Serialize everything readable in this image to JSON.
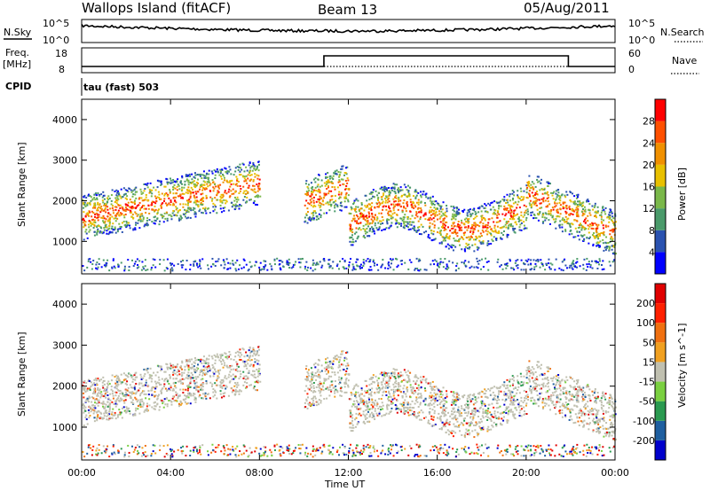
{
  "header": {
    "title": "Wallops Island (fitACF)",
    "beam": "Beam 13",
    "date": "05/Aug/2011"
  },
  "status_panels": {
    "nsky_label": "N.Sky",
    "nsearch_label": "N.Search",
    "freq_label_1": "Freq.",
    "freq_label_2": "[MHz]",
    "nave_label": "Nave",
    "cpid_label": "CPID",
    "noise_ticks": {
      "top": "10^5",
      "bottom": "10^0"
    },
    "freq_ticks": {
      "top": "18",
      "bottom": "8"
    },
    "nave_ticks": {
      "top": "60",
      "bottom": "0"
    },
    "cpid_text": "tau (fast) 503",
    "freq_step": {
      "start_hour": 10.9,
      "end_hour": 21.9
    }
  },
  "chart_data": [
    {
      "type": "heatmap",
      "title": "",
      "ylabel": "Slant Range [km]",
      "ylim": [
        200,
        4500
      ],
      "yticks": [
        "1000",
        "2000",
        "3000",
        "4000"
      ],
      "xlim": [
        0,
        24
      ],
      "xticks": [
        "00:00",
        "04:00",
        "08:00",
        "12:00",
        "16:00",
        "20:00",
        "00:00"
      ],
      "colorbar": {
        "label": "Power [dB]",
        "ticks": [
          "28",
          "24",
          "20",
          "16",
          "12",
          "8",
          "4"
        ],
        "colors": [
          "#0000ff",
          "#2a52b0",
          "#4a9a6a",
          "#7ab84a",
          "#e8c000",
          "#f09000",
          "#ff5000",
          "#ff0000"
        ]
      }
    },
    {
      "type": "heatmap",
      "title": "",
      "ylabel": "Slant Range [km]",
      "ylim": [
        200,
        4500
      ],
      "yticks": [
        "1000",
        "2000",
        "3000",
        "4000"
      ],
      "xlim": [
        0,
        24
      ],
      "xticks": [
        "00:00",
        "04:00",
        "08:00",
        "12:00",
        "16:00",
        "20:00",
        "00:00"
      ],
      "xlabel": "Time UT",
      "colorbar": {
        "label": "Velocity [m s^-1]",
        "ticks": [
          "200",
          "100",
          "50",
          "15",
          "-15",
          "-50",
          "-100",
          "-200"
        ],
        "colors": [
          "#0000cc",
          "#1f5fa0",
          "#2a9a50",
          "#7ad040",
          "#c0c0b0",
          "#f0a020",
          "#f07010",
          "#ff2000",
          "#e00000"
        ]
      }
    }
  ]
}
